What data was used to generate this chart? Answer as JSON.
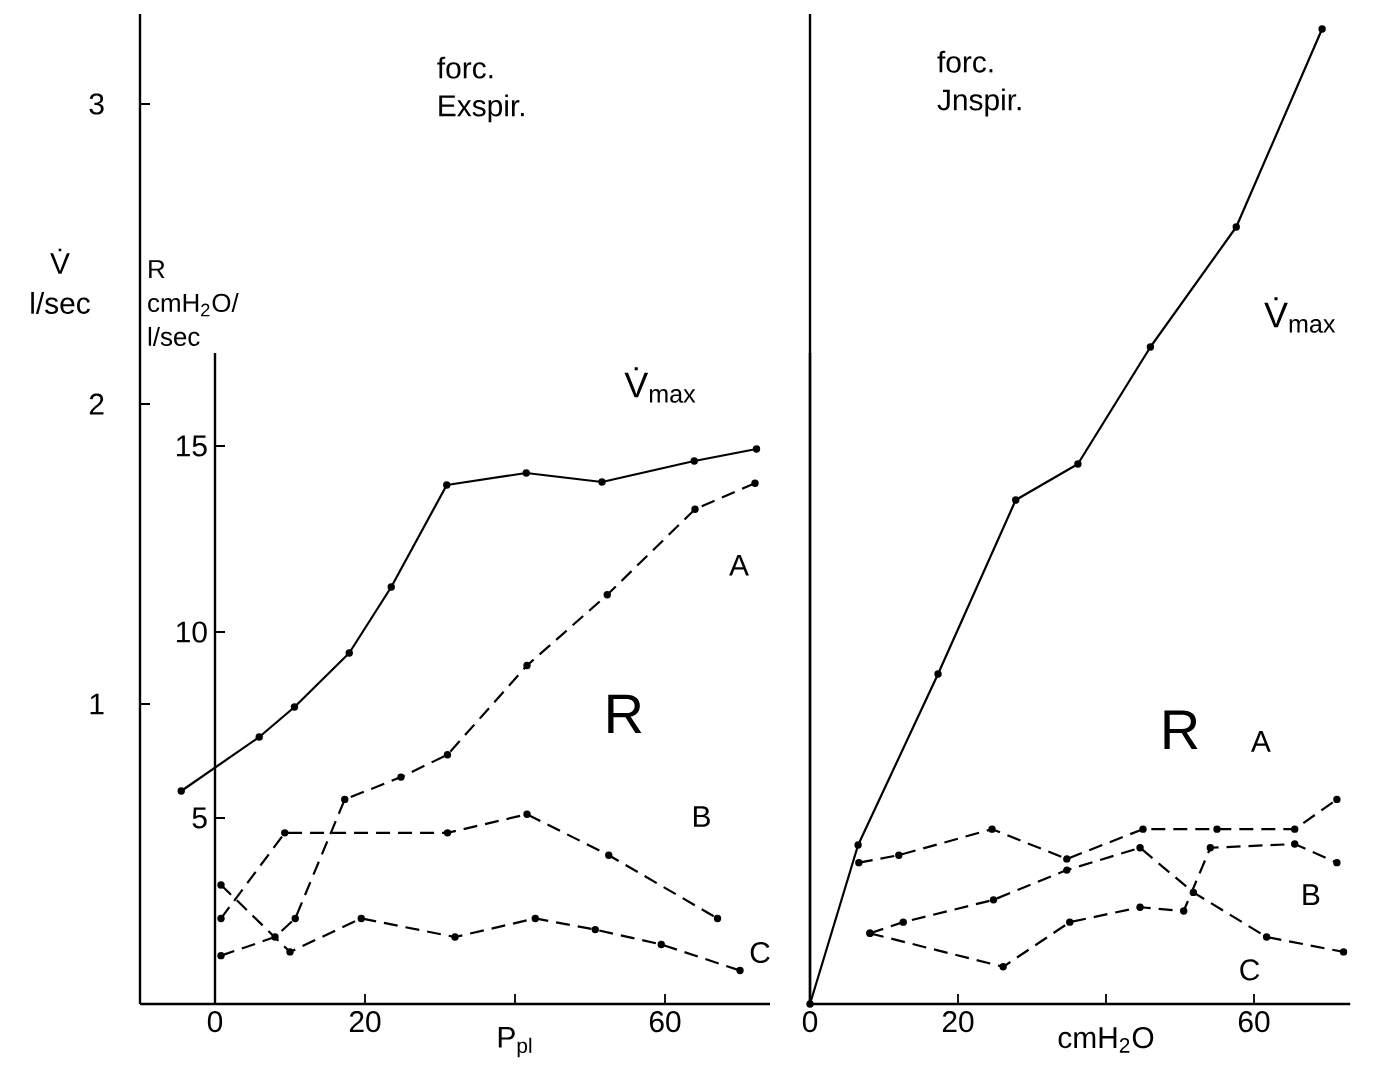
{
  "chart_data": [
    {
      "type": "line",
      "title": "forc. Exspir.",
      "xlabel": "P$_{pl}$",
      "ylabel": "V̇ l/sec",
      "y2label": "R cmH$_{2}$O/ l/sec",
      "xlim": [
        -10,
        74
      ],
      "xticks": [
        0,
        20,
        {
          "value": 40,
          "label": null
        },
        60
      ],
      "ylim": [
        0,
        3.3
      ],
      "yticks": [
        1,
        2,
        3
      ],
      "y2lim": [
        0,
        17.5
      ],
      "y2ticks": [
        5,
        10,
        15
      ],
      "marker": "circle",
      "annotations": [
        "R"
      ],
      "series": [
        {
          "name": "V̇$_{max}$",
          "color": "#000000",
          "line_style": "solid",
          "x": [
            -4.5,
            5.9,
            10.6,
            17.9,
            23.5,
            30.9,
            41.5,
            51.6,
            63.9,
            72.2
          ],
          "values": [
            0.71,
            0.89,
            0.99,
            1.17,
            1.39,
            1.73,
            1.77,
            1.74,
            1.81,
            1.85
          ]
        },
        {
          "name": "A",
          "color": "#000000",
          "line_style": "dashed",
          "axis": "y2",
          "x": [
            0.8,
            8,
            10.7,
            17.3,
            24.8,
            31,
            41.6,
            52.3,
            64,
            72
          ],
          "values": [
            1.3,
            1.8,
            2.3,
            5.5,
            6.1,
            6.7,
            9.1,
            11.0,
            13.3,
            14.0
          ]
        },
        {
          "name": "B",
          "color": "#000000",
          "line_style": "dashed",
          "axis": "y2",
          "x": [
            0.8,
            9.3,
            31,
            41.6,
            52.5,
            67
          ],
          "values": [
            2.3,
            4.6,
            4.6,
            5.1,
            4.0,
            2.3
          ]
        },
        {
          "name": "C",
          "color": "#000000",
          "line_style": "dashed",
          "axis": "y2",
          "x": [
            0.8,
            10,
            19.5,
            32,
            42.7,
            50.7,
            59.5,
            70
          ],
          "values": [
            3.2,
            1.4,
            2.3,
            1.8,
            2.3,
            2.0,
            1.6,
            0.9
          ]
        }
      ]
    },
    {
      "type": "line",
      "title": "forc. Jnspir.",
      "xlabel": "cmH$_{2}$O",
      "xlim": [
        0,
        73
      ],
      "xticks": [
        0,
        20,
        {
          "value": 40,
          "label": null
        },
        60
      ],
      "ylim": [
        0,
        3.3
      ],
      "y2lim": [
        0,
        17.5
      ],
      "tick_labels": "x",
      "marker": "circle",
      "annotations": [
        "R"
      ],
      "series": [
        {
          "name": "V̇$_{max}$",
          "color": "#000000",
          "line_style": "solid",
          "x": [
            0,
            6.5,
            17.3,
            27.8,
            36.2,
            46,
            57.6,
            69.2
          ],
          "values": [
            0,
            0.53,
            1.1,
            1.68,
            1.8,
            2.19,
            2.59,
            3.25
          ]
        },
        {
          "name": "A",
          "color": "#000000",
          "line_style": "dashed",
          "axis": "y2",
          "x": [
            6.6,
            12.0,
            24.6,
            34.7,
            45.0,
            55.0,
            65.5,
            71.2
          ],
          "values": [
            3.8,
            4.0,
            4.7,
            3.9,
            4.7,
            4.7,
            4.7,
            5.5
          ]
        },
        {
          "name": "B",
          "color": "#000000",
          "line_style": "dashed",
          "axis": "y2",
          "x": [
            8.1,
            26.1,
            35.1,
            44.6,
            50.5,
            54.1,
            65.5,
            71.2
          ],
          "values": [
            1.9,
            1.0,
            2.2,
            2.6,
            2.5,
            4.2,
            4.3,
            3.8
          ]
        },
        {
          "name": "C",
          "color": "#000000",
          "line_style": "dashed",
          "axis": "y2",
          "x": [
            8.1,
            12.6,
            24.8,
            34.7,
            44.6,
            51.8,
            61.7,
            72.1
          ],
          "values": [
            1.9,
            2.2,
            2.8,
            3.6,
            4.2,
            3.0,
            1.8,
            1.4
          ]
        }
      ]
    }
  ]
}
